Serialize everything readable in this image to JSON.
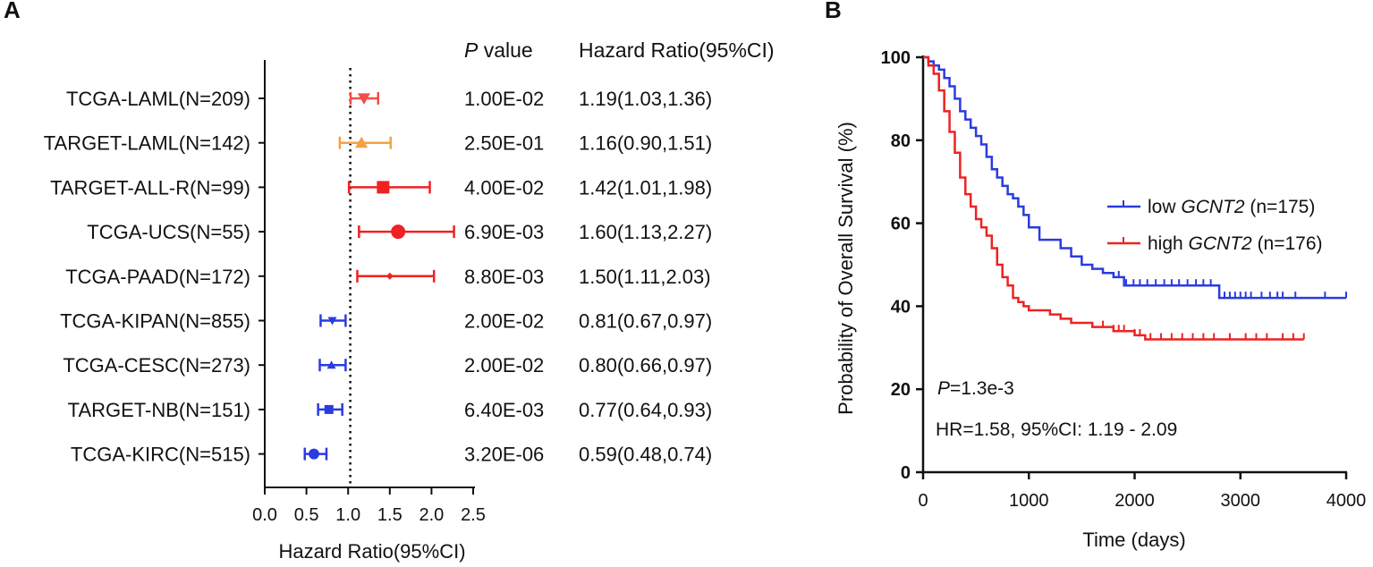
{
  "panels": {
    "a_label": "A",
    "b_label": "B"
  },
  "chart_data": [
    {
      "type": "forest",
      "panel": "A",
      "columns": {
        "p_value_italic": "P",
        "p_value_rest": " value",
        "hr_header": "Hazard Ratio(95%CI)"
      },
      "xlabel": "Hazard Ratio(95%CI)",
      "xlim": [
        0,
        2.5
      ],
      "xticks": [
        "0.0",
        "0.5",
        "1.0",
        "1.5",
        "2.0",
        "2.5"
      ],
      "reference_line": 1.0,
      "rows": [
        {
          "label": "TCGA-LAML(N=209)",
          "hr": 1.19,
          "lo": 1.03,
          "hi": 1.36,
          "p": "1.00E-02",
          "hr_text": "1.19(1.03,1.36)",
          "color": "#f0504a",
          "marker": "triangle-down",
          "size": 7
        },
        {
          "label": "TARGET-LAML(N=142)",
          "hr": 1.16,
          "lo": 0.9,
          "hi": 1.51,
          "p": "2.50E-01",
          "hr_text": "1.16(0.90,1.51)",
          "color": "#f5a142",
          "marker": "triangle-up",
          "size": 7
        },
        {
          "label": "TARGET-ALL-R(N=99)",
          "hr": 1.42,
          "lo": 1.01,
          "hi": 1.98,
          "p": "4.00E-02",
          "hr_text": "1.42(1.01,1.98)",
          "color": "#ee2222",
          "marker": "square",
          "size": 7
        },
        {
          "label": "TCGA-UCS(N=55)",
          "hr": 1.6,
          "lo": 1.13,
          "hi": 2.27,
          "p": "6.90E-03",
          "hr_text": "1.60(1.13,2.27)",
          "color": "#ee2222",
          "marker": "circle",
          "size": 8
        },
        {
          "label": "TCGA-PAAD(N=172)",
          "hr": 1.5,
          "lo": 1.11,
          "hi": 2.03,
          "p": "8.80E-03",
          "hr_text": "1.50(1.11,2.03)",
          "color": "#ee2222",
          "marker": "diamond",
          "size": 4
        },
        {
          "label": "TCGA-KIPAN(N=855)",
          "hr": 0.81,
          "lo": 0.67,
          "hi": 0.97,
          "p": "2.00E-02",
          "hr_text": "0.81(0.67,0.97)",
          "color": "#2a3be0",
          "marker": "triangle-down",
          "size": 5
        },
        {
          "label": "TCGA-CESC(N=273)",
          "hr": 0.8,
          "lo": 0.66,
          "hi": 0.97,
          "p": "2.00E-02",
          "hr_text": "0.80(0.66,0.97)",
          "color": "#2a3be0",
          "marker": "triangle-up",
          "size": 5
        },
        {
          "label": "TARGET-NB(N=151)",
          "hr": 0.77,
          "lo": 0.64,
          "hi": 0.93,
          "p": "6.40E-03",
          "hr_text": "0.77(0.64,0.93)",
          "color": "#2a3be0",
          "marker": "square",
          "size": 5
        },
        {
          "label": "TCGA-KIRC(N=515)",
          "hr": 0.59,
          "lo": 0.48,
          "hi": 0.74,
          "p": "3.20E-06",
          "hr_text": "0.59(0.48,0.74)",
          "color": "#2a3be0",
          "marker": "circle",
          "size": 6
        }
      ]
    },
    {
      "type": "line",
      "subtype": "kaplan-meier",
      "panel": "B",
      "xlabel": "Time (days)",
      "ylabel": "Probability of Overall Survival (%)",
      "xlim": [
        0,
        4000
      ],
      "ylim": [
        0,
        100
      ],
      "xticks": [
        "0",
        "1000",
        "2000",
        "3000",
        "4000"
      ],
      "yticks": [
        "0",
        "20",
        "40",
        "60",
        "80",
        "100"
      ],
      "legend_position": "right",
      "annotations": {
        "p_italic": "P",
        "p_rest": "=1.3e-3",
        "hr": "HR=1.58, 95%CI: 1.19 - 2.09"
      },
      "series": [
        {
          "legend_prefix": "low ",
          "legend_gene": "GCNT2",
          "legend_suffix": " (n=175)",
          "color": "#2a3be0",
          "x": [
            0,
            50,
            100,
            150,
            200,
            250,
            300,
            350,
            400,
            450,
            500,
            550,
            600,
            650,
            700,
            750,
            800,
            850,
            900,
            950,
            1000,
            1100,
            1200,
            1300,
            1400,
            1500,
            1600,
            1700,
            1800,
            1900,
            2000,
            2200,
            2400,
            2600,
            2750,
            2800,
            3000,
            3500,
            4000
          ],
          "y": [
            100,
            99,
            98,
            97,
            95,
            93,
            90,
            87,
            85,
            83,
            81,
            79,
            76,
            73,
            71,
            69,
            67,
            66,
            64,
            62,
            59,
            56,
            56,
            54,
            52,
            50,
            49,
            48,
            47,
            45,
            45,
            45,
            45,
            45,
            45,
            42,
            42,
            42,
            42
          ],
          "censor_x": [
            1850,
            1920,
            1990,
            2050,
            2120,
            2200,
            2280,
            2350,
            2420,
            2500,
            2580,
            2650,
            2720,
            2850,
            2900,
            2950,
            3000,
            3050,
            3100,
            3200,
            3280,
            3350,
            3400,
            3520,
            3800,
            4000
          ]
        },
        {
          "legend_prefix": "high ",
          "legend_gene": "GCNT2",
          "legend_suffix": " (n=176)",
          "color": "#ee2222",
          "x": [
            0,
            50,
            100,
            150,
            200,
            250,
            300,
            350,
            400,
            450,
            500,
            550,
            600,
            650,
            700,
            750,
            800,
            850,
            900,
            950,
            1000,
            1100,
            1200,
            1300,
            1400,
            1500,
            1600,
            1800,
            2000,
            2100,
            2500,
            3000,
            3600
          ],
          "y": [
            100,
            98,
            96,
            92,
            87,
            82,
            77,
            71,
            67,
            64,
            61,
            59,
            57,
            54,
            50,
            47,
            45,
            42,
            41,
            40,
            39,
            39,
            38,
            37,
            36,
            36,
            35,
            34,
            33,
            32,
            32,
            32,
            32
          ],
          "censor_x": [
            1700,
            1800,
            1850,
            1900,
            2000,
            2050,
            2150,
            2250,
            2350,
            2450,
            2550,
            2650,
            2750,
            2900,
            3050,
            3150,
            3250,
            3400,
            3500,
            3600
          ]
        }
      ]
    }
  ]
}
